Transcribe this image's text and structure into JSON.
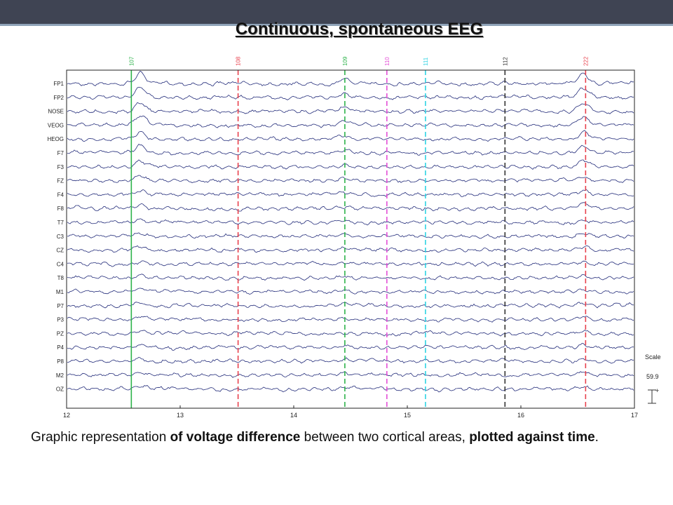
{
  "slide": {
    "title": "Continuous, spontaneous EEG",
    "caption": {
      "part1": "Graphic representation ",
      "bold1": "of voltage difference",
      "part2": " between two cortical areas, ",
      "bold2": "plotted against time",
      "part3": "."
    }
  },
  "colors": {
    "trace": "#232c7a",
    "header": "#3f4453",
    "accent": "#8fa3b8"
  },
  "chart_data": {
    "type": "line",
    "title": "",
    "xlabel": "",
    "ylabel": "",
    "xlim": [
      12,
      17
    ],
    "x_ticks": [
      "12",
      "13",
      "14",
      "15",
      "16",
      "17"
    ],
    "channels": [
      "FP1",
      "FP2",
      "NOSE",
      "VEOG",
      "HEOG",
      "F7",
      "F3",
      "FZ",
      "F4",
      "F8",
      "T7",
      "C3",
      "CZ",
      "C4",
      "T8",
      "M1",
      "P7",
      "P3",
      "PZ",
      "P4",
      "P8",
      "M2",
      "OZ"
    ],
    "events": [
      {
        "label": "107",
        "time": 12.57,
        "color": "#2db34a",
        "style": "solid"
      },
      {
        "label": "108",
        "time": 13.51,
        "color": "#e8424e",
        "style": "dashed"
      },
      {
        "label": "109",
        "time": 14.45,
        "color": "#2db34a",
        "style": "dashed"
      },
      {
        "label": "110",
        "time": 14.82,
        "color": "#e34fd6",
        "style": "dashed"
      },
      {
        "label": "111",
        "time": 15.16,
        "color": "#2fd3e3",
        "style": "dashed"
      },
      {
        "label": "112",
        "time": 15.86,
        "color": "#333333",
        "style": "dashed"
      },
      {
        "label": "222",
        "time": 16.57,
        "color": "#e8424e",
        "style": "dashed"
      }
    ],
    "scale": {
      "label": "Scale",
      "value": "59.9",
      "sign": "+"
    },
    "grid": false
  }
}
